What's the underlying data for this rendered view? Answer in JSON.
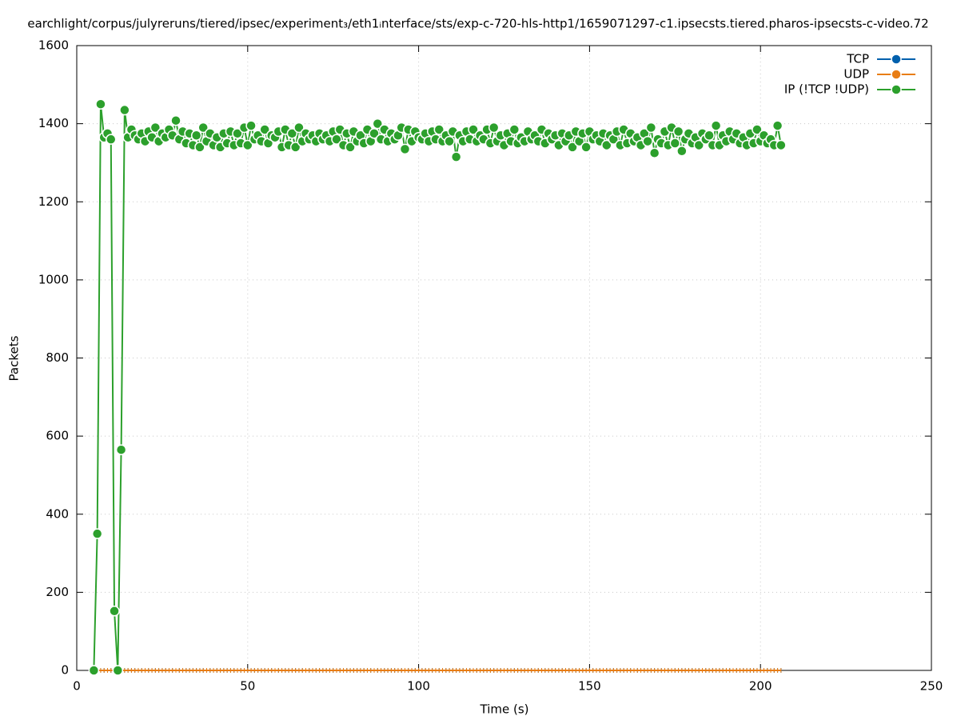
{
  "chart_data": {
    "type": "line",
    "title": "earchlight/corpus/julyreruns/tiered/ipsec/experiment₃/eth1ᵢnterface/sts/exp-c-720-hls-http1/1659071297-c1.ipsecsts.tiered.pharos-ipsecsts-c-video.72",
    "x_label": "Time (s)",
    "y_label": "Packets",
    "xlim": [
      0,
      250
    ],
    "xticks": [
      0,
      50,
      100,
      150,
      200,
      250
    ],
    "ylim": [
      0,
      1600
    ],
    "yticks": [
      0,
      200,
      400,
      600,
      800,
      1000,
      1200,
      1400,
      1600
    ],
    "grid": true,
    "legend": "top-right",
    "x": [
      5,
      6,
      7,
      8,
      9,
      10,
      11,
      12,
      13,
      14,
      15,
      16,
      17,
      18,
      19,
      20,
      21,
      22,
      23,
      24,
      25,
      26,
      27,
      28,
      29,
      30,
      31,
      32,
      33,
      34,
      35,
      36,
      37,
      38,
      39,
      40,
      41,
      42,
      43,
      44,
      45,
      46,
      47,
      48,
      49,
      50,
      51,
      52,
      53,
      54,
      55,
      56,
      57,
      58,
      59,
      60,
      61,
      62,
      63,
      64,
      65,
      66,
      67,
      68,
      69,
      70,
      71,
      72,
      73,
      74,
      75,
      76,
      77,
      78,
      79,
      80,
      81,
      82,
      83,
      84,
      85,
      86,
      87,
      88,
      89,
      90,
      91,
      92,
      93,
      94,
      95,
      96,
      97,
      98,
      99,
      100,
      101,
      102,
      103,
      104,
      105,
      106,
      107,
      108,
      109,
      110,
      111,
      112,
      113,
      114,
      115,
      116,
      117,
      118,
      119,
      120,
      121,
      122,
      123,
      124,
      125,
      126,
      127,
      128,
      129,
      130,
      131,
      132,
      133,
      134,
      135,
      136,
      137,
      138,
      139,
      140,
      141,
      142,
      143,
      144,
      145,
      146,
      147,
      148,
      149,
      150,
      151,
      152,
      153,
      154,
      155,
      156,
      157,
      158,
      159,
      160,
      161,
      162,
      163,
      164,
      165,
      166,
      167,
      168,
      169,
      170,
      171,
      172,
      173,
      174,
      175,
      176,
      177,
      178,
      179,
      180,
      181,
      182,
      183,
      184,
      185,
      186,
      187,
      188,
      189,
      190,
      191,
      192,
      193,
      194,
      195,
      196,
      197,
      198,
      199,
      200,
      201,
      202,
      203,
      204,
      205,
      206
    ],
    "series": [
      {
        "name": "TCP",
        "color": "#0060ad",
        "marker": "tick",
        "values": [
          0,
          0,
          0,
          0,
          0,
          0,
          0,
          0,
          0,
          0,
          0,
          0,
          0,
          0,
          0,
          0,
          0,
          0,
          0,
          0,
          0,
          0,
          0,
          0,
          0,
          0,
          0,
          0,
          0,
          0,
          0,
          0,
          0,
          0,
          0,
          0,
          0,
          0,
          0,
          0,
          0,
          0,
          0,
          0,
          0,
          0,
          0,
          0,
          0,
          0,
          0,
          0,
          0,
          0,
          0,
          0,
          0,
          0,
          0,
          0,
          0,
          0,
          0,
          0,
          0,
          0,
          0,
          0,
          0,
          0,
          0,
          0,
          0,
          0,
          0,
          0,
          0,
          0,
          0,
          0,
          0,
          0,
          0,
          0,
          0,
          0,
          0,
          0,
          0,
          0,
          0,
          0,
          0,
          0,
          0,
          0,
          0,
          0,
          0,
          0,
          0,
          0,
          0,
          0,
          0,
          0,
          0,
          0,
          0,
          0,
          0,
          0,
          0,
          0,
          0,
          0,
          0,
          0,
          0,
          0,
          0,
          0,
          0,
          0,
          0,
          0,
          0,
          0,
          0,
          0,
          0,
          0,
          0,
          0,
          0,
          0,
          0,
          0,
          0,
          0,
          0,
          0,
          0,
          0,
          0,
          0,
          0,
          0,
          0,
          0,
          0,
          0,
          0,
          0,
          0,
          0,
          0,
          0,
          0,
          0,
          0,
          0,
          0,
          0,
          0,
          0,
          0,
          0,
          0,
          0,
          0,
          0,
          0,
          0,
          0,
          0,
          0,
          0,
          0,
          0,
          0,
          0,
          0,
          0,
          0,
          0,
          0,
          0,
          0,
          0,
          0,
          0,
          0,
          0,
          0,
          0,
          0,
          0,
          0,
          0,
          0,
          0
        ]
      },
      {
        "name": "UDP",
        "color": "#e87d14",
        "marker": "tick",
        "values": [
          0,
          0,
          0,
          0,
          0,
          0,
          0,
          0,
          0,
          0,
          0,
          0,
          0,
          0,
          0,
          0,
          0,
          0,
          0,
          0,
          0,
          0,
          0,
          0,
          0,
          0,
          0,
          0,
          0,
          0,
          0,
          0,
          0,
          0,
          0,
          0,
          0,
          0,
          0,
          0,
          0,
          0,
          0,
          0,
          0,
          0,
          0,
          0,
          0,
          0,
          0,
          0,
          0,
          0,
          0,
          0,
          0,
          0,
          0,
          0,
          0,
          0,
          0,
          0,
          0,
          0,
          0,
          0,
          0,
          0,
          0,
          0,
          0,
          0,
          0,
          0,
          0,
          0,
          0,
          0,
          0,
          0,
          0,
          0,
          0,
          0,
          0,
          0,
          0,
          0,
          0,
          0,
          0,
          0,
          0,
          0,
          0,
          0,
          0,
          0,
          0,
          0,
          0,
          0,
          0,
          0,
          0,
          0,
          0,
          0,
          0,
          0,
          0,
          0,
          0,
          0,
          0,
          0,
          0,
          0,
          0,
          0,
          0,
          0,
          0,
          0,
          0,
          0,
          0,
          0,
          0,
          0,
          0,
          0,
          0,
          0,
          0,
          0,
          0,
          0,
          0,
          0,
          0,
          0,
          0,
          0,
          0,
          0,
          0,
          0,
          0,
          0,
          0,
          0,
          0,
          0,
          0,
          0,
          0,
          0,
          0,
          0,
          0,
          0,
          0,
          0,
          0,
          0,
          0,
          0,
          0,
          0,
          0,
          0,
          0,
          0,
          0,
          0,
          0,
          0,
          0,
          0,
          0,
          0,
          0,
          0,
          0,
          0,
          0,
          0,
          0,
          0,
          0,
          0,
          0,
          0,
          0,
          0,
          0,
          0,
          0,
          0
        ]
      },
      {
        "name": "IP (!TCP  !UDP)",
        "color": "#2ca02c",
        "marker": "circle",
        "values": [
          0,
          350,
          1450,
          1365,
          1375,
          1360,
          152,
          0,
          565,
          1435,
          1365,
          1385,
          1370,
          1360,
          1375,
          1355,
          1380,
          1365,
          1390,
          1355,
          1375,
          1365,
          1385,
          1370,
          1408,
          1360,
          1380,
          1350,
          1375,
          1345,
          1370,
          1340,
          1390,
          1355,
          1375,
          1345,
          1365,
          1340,
          1375,
          1350,
          1380,
          1345,
          1375,
          1350,
          1390,
          1345,
          1395,
          1360,
          1370,
          1355,
          1385,
          1350,
          1370,
          1365,
          1380,
          1340,
          1385,
          1345,
          1375,
          1340,
          1390,
          1355,
          1375,
          1360,
          1370,
          1355,
          1375,
          1360,
          1370,
          1355,
          1380,
          1360,
          1385,
          1345,
          1375,
          1340,
          1380,
          1355,
          1370,
          1350,
          1385,
          1355,
          1375,
          1400,
          1360,
          1385,
          1355,
          1375,
          1360,
          1370,
          1390,
          1335,
          1385,
          1355,
          1380,
          1365,
          1360,
          1375,
          1355,
          1380,
          1360,
          1385,
          1355,
          1370,
          1355,
          1380,
          1315,
          1370,
          1355,
          1380,
          1360,
          1385,
          1355,
          1370,
          1360,
          1385,
          1350,
          1390,
          1355,
          1370,
          1345,
          1375,
          1355,
          1385,
          1350,
          1365,
          1355,
          1380,
          1360,
          1370,
          1355,
          1385,
          1350,
          1375,
          1360,
          1370,
          1345,
          1375,
          1355,
          1370,
          1340,
          1380,
          1355,
          1375,
          1340,
          1380,
          1360,
          1370,
          1355,
          1375,
          1345,
          1370,
          1360,
          1380,
          1345,
          1385,
          1350,
          1375,
          1355,
          1365,
          1345,
          1375,
          1355,
          1390,
          1325,
          1360,
          1350,
          1380,
          1345,
          1390,
          1350,
          1380,
          1330,
          1360,
          1375,
          1350,
          1365,
          1345,
          1375,
          1360,
          1370,
          1345,
          1395,
          1345,
          1370,
          1355,
          1380,
          1360,
          1375,
          1350,
          1365,
          1345,
          1375,
          1350,
          1385,
          1355,
          1370,
          1350,
          1360,
          1345,
          1395,
          1345
        ]
      }
    ]
  }
}
